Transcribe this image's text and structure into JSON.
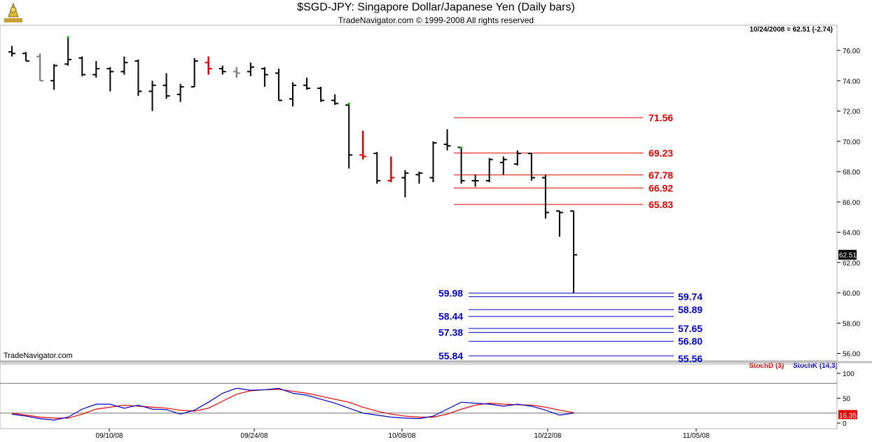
{
  "header": {
    "title": "$SGD-JPY:  Singapore Dollar/Japanese Yen  (Daily bars)",
    "subtitle": "TradeNavigator.com © 1999-2008 All rights reserved",
    "quote": "10/24/2008 = 62.51 (-2.74)",
    "watermark": "TradeNavigator.com"
  },
  "legend": {
    "stochd": "StochD (3)",
    "stochk": "StochK (14,3)"
  },
  "colors": {
    "bar": "#000000",
    "red": "#e00000",
    "blue": "#0000c8",
    "gray": "#808080",
    "green": "#00c000"
  },
  "chart_data": {
    "type": "bar",
    "price_axis": {
      "range": [
        55.6,
        77
      ],
      "ticks": [
        56,
        58,
        60,
        62,
        64,
        66,
        68,
        70,
        72,
        74,
        76
      ],
      "labels": [
        "56.00",
        "58.00",
        "60.00",
        "62.00",
        "64.00",
        "66.00",
        "68.00",
        "70.00",
        "72.00",
        "74.00",
        "76.00"
      ]
    },
    "last_price": "62.51",
    "x_labels": [
      "09/10/08",
      "09/24/08",
      "10/08/08",
      "10/22/08",
      "11/05/08"
    ],
    "bars": [
      {
        "o": 75.9,
        "h": 76.3,
        "l": 75.6,
        "c": 75.8,
        "col": "black"
      },
      {
        "o": 75.8,
        "h": 75.9,
        "l": 75.3,
        "c": 75.3,
        "col": "black"
      },
      {
        "o": 75.6,
        "h": 75.8,
        "l": 74.0,
        "c": 74.0,
        "col": "gray"
      },
      {
        "o": 74.0,
        "h": 75.1,
        "l": 73.4,
        "c": 75.0,
        "col": "black"
      },
      {
        "o": 75.1,
        "h": 76.9,
        "l": 75.0,
        "c": 75.4,
        "col": "black",
        "mark": "green"
      },
      {
        "o": 75.5,
        "h": 75.6,
        "l": 74.3,
        "c": 74.4,
        "col": "black"
      },
      {
        "o": 74.4,
        "h": 75.3,
        "l": 74.2,
        "c": 74.8,
        "col": "black"
      },
      {
        "o": 74.8,
        "h": 74.9,
        "l": 73.3,
        "c": 74.6,
        "col": "black"
      },
      {
        "o": 74.6,
        "h": 75.6,
        "l": 74.4,
        "c": 75.2,
        "col": "black"
      },
      {
        "o": 75.3,
        "h": 75.4,
        "l": 73.0,
        "c": 73.3,
        "col": "black"
      },
      {
        "o": 73.3,
        "h": 74.0,
        "l": 72.0,
        "c": 73.7,
        "col": "black"
      },
      {
        "o": 73.7,
        "h": 74.5,
        "l": 72.8,
        "c": 73.0,
        "col": "black"
      },
      {
        "o": 73.1,
        "h": 73.8,
        "l": 72.6,
        "c": 73.6,
        "col": "black"
      },
      {
        "o": 73.6,
        "h": 75.5,
        "l": 73.6,
        "c": 75.3,
        "col": "black"
      },
      {
        "o": 75.2,
        "h": 75.6,
        "l": 74.4,
        "c": 74.8,
        "col": "red"
      },
      {
        "o": 74.8,
        "h": 75.0,
        "l": 74.4,
        "c": 74.6,
        "col": "black"
      },
      {
        "o": 74.6,
        "h": 74.9,
        "l": 74.2,
        "c": 74.5,
        "col": "gray"
      },
      {
        "o": 74.6,
        "h": 75.2,
        "l": 74.3,
        "c": 74.9,
        "col": "black"
      },
      {
        "o": 74.8,
        "h": 74.9,
        "l": 73.6,
        "c": 74.4,
        "col": "black"
      },
      {
        "o": 74.5,
        "h": 74.8,
        "l": 72.7,
        "c": 72.7,
        "col": "black"
      },
      {
        "o": 72.8,
        "h": 73.9,
        "l": 72.3,
        "c": 73.7,
        "col": "black"
      },
      {
        "o": 73.7,
        "h": 74.2,
        "l": 73.4,
        "c": 73.5,
        "col": "black"
      },
      {
        "o": 73.5,
        "h": 73.6,
        "l": 72.6,
        "c": 72.7,
        "col": "black"
      },
      {
        "o": 72.7,
        "h": 73.1,
        "l": 72.4,
        "c": 72.5,
        "col": "black"
      },
      {
        "o": 72.4,
        "h": 72.5,
        "l": 68.2,
        "c": 69.1,
        "col": "black",
        "mark": "green"
      },
      {
        "o": 69.1,
        "h": 70.7,
        "l": 68.8,
        "c": 69.0,
        "col": "red"
      },
      {
        "o": 69.2,
        "h": 69.3,
        "l": 67.2,
        "c": 67.4,
        "col": "black"
      },
      {
        "o": 67.4,
        "h": 69.0,
        "l": 67.3,
        "c": 67.6,
        "col": "red"
      },
      {
        "o": 67.6,
        "h": 68.1,
        "l": 66.3,
        "c": 67.9,
        "col": "black"
      },
      {
        "o": 67.8,
        "h": 68.0,
        "l": 67.2,
        "c": 67.9,
        "col": "black"
      },
      {
        "o": 67.6,
        "h": 70.0,
        "l": 67.3,
        "c": 69.9,
        "col": "black"
      },
      {
        "o": 69.8,
        "h": 70.8,
        "l": 69.4,
        "c": 69.7,
        "col": "black"
      },
      {
        "o": 69.6,
        "h": 69.6,
        "l": 67.2,
        "c": 67.4,
        "col": "black",
        "mark": "green"
      },
      {
        "o": 67.4,
        "h": 67.8,
        "l": 67.0,
        "c": 67.4,
        "col": "black"
      },
      {
        "o": 67.4,
        "h": 68.9,
        "l": 67.3,
        "c": 68.8,
        "col": "black"
      },
      {
        "o": 68.6,
        "h": 69.0,
        "l": 67.8,
        "c": 68.8,
        "col": "black"
      },
      {
        "o": 68.5,
        "h": 69.4,
        "l": 68.4,
        "c": 69.2,
        "col": "black"
      },
      {
        "o": 69.2,
        "h": 69.2,
        "l": 67.4,
        "c": 67.6,
        "col": "black"
      },
      {
        "o": 67.6,
        "h": 67.8,
        "l": 64.9,
        "c": 65.3,
        "col": "black"
      },
      {
        "o": 65.4,
        "h": 65.4,
        "l": 63.7,
        "c": 65.3,
        "col": "black"
      },
      {
        "o": 65.4,
        "h": 65.4,
        "l": 59.98,
        "c": 62.51,
        "col": "black"
      }
    ],
    "red_levels": [
      {
        "value": 71.56,
        "label": "71.56"
      },
      {
        "value": 69.23,
        "label": "69.23"
      },
      {
        "value": 67.78,
        "label": "67.78"
      },
      {
        "value": 66.92,
        "label": "66.92"
      },
      {
        "value": 65.83,
        "label": "65.83"
      }
    ],
    "blue_levels": [
      {
        "value": 59.98,
        "label": "59.98",
        "side": "left"
      },
      {
        "value": 59.74,
        "label": "59.74",
        "side": "right"
      },
      {
        "value": 58.89,
        "label": "58.89",
        "side": "right"
      },
      {
        "value": 58.44,
        "label": "58.44",
        "side": "left"
      },
      {
        "value": 57.65,
        "label": "57.65",
        "side": "right"
      },
      {
        "value": 57.38,
        "label": "57.38",
        "side": "left"
      },
      {
        "value": 56.8,
        "label": "56.80",
        "side": "right"
      },
      {
        "value": 55.84,
        "label": "55.84",
        "side": "left"
      },
      {
        "value": 55.56,
        "label": "55.56",
        "side": "right"
      }
    ],
    "stochastic": {
      "range": [
        0,
        100
      ],
      "ticks": [
        0,
        50,
        100
      ],
      "reference_lines": [
        80,
        20
      ],
      "last_value": "16.35",
      "k": [
        18,
        14,
        9,
        6,
        12,
        28,
        38,
        38,
        30,
        36,
        28,
        27,
        18,
        26,
        42,
        60,
        70,
        66,
        67,
        70,
        60,
        56,
        48,
        40,
        30,
        20,
        16,
        12,
        10,
        9,
        14,
        28,
        42,
        40,
        38,
        34,
        38,
        34,
        26,
        16,
        20
      ],
      "d": [
        20,
        16,
        12,
        10,
        10,
        18,
        28,
        32,
        36,
        34,
        32,
        30,
        26,
        24,
        30,
        44,
        58,
        65,
        67,
        68,
        64,
        60,
        54,
        48,
        42,
        32,
        24,
        18,
        14,
        12,
        12,
        18,
        28,
        36,
        40,
        38,
        37,
        36,
        32,
        26,
        21
      ]
    }
  }
}
